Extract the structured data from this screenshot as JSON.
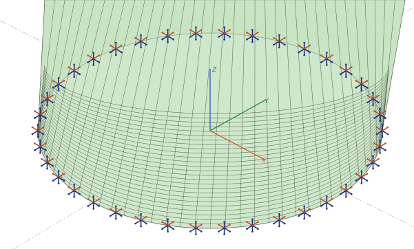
{
  "axes": {
    "z": "Z",
    "y": "Y",
    "x": "X"
  }
}
